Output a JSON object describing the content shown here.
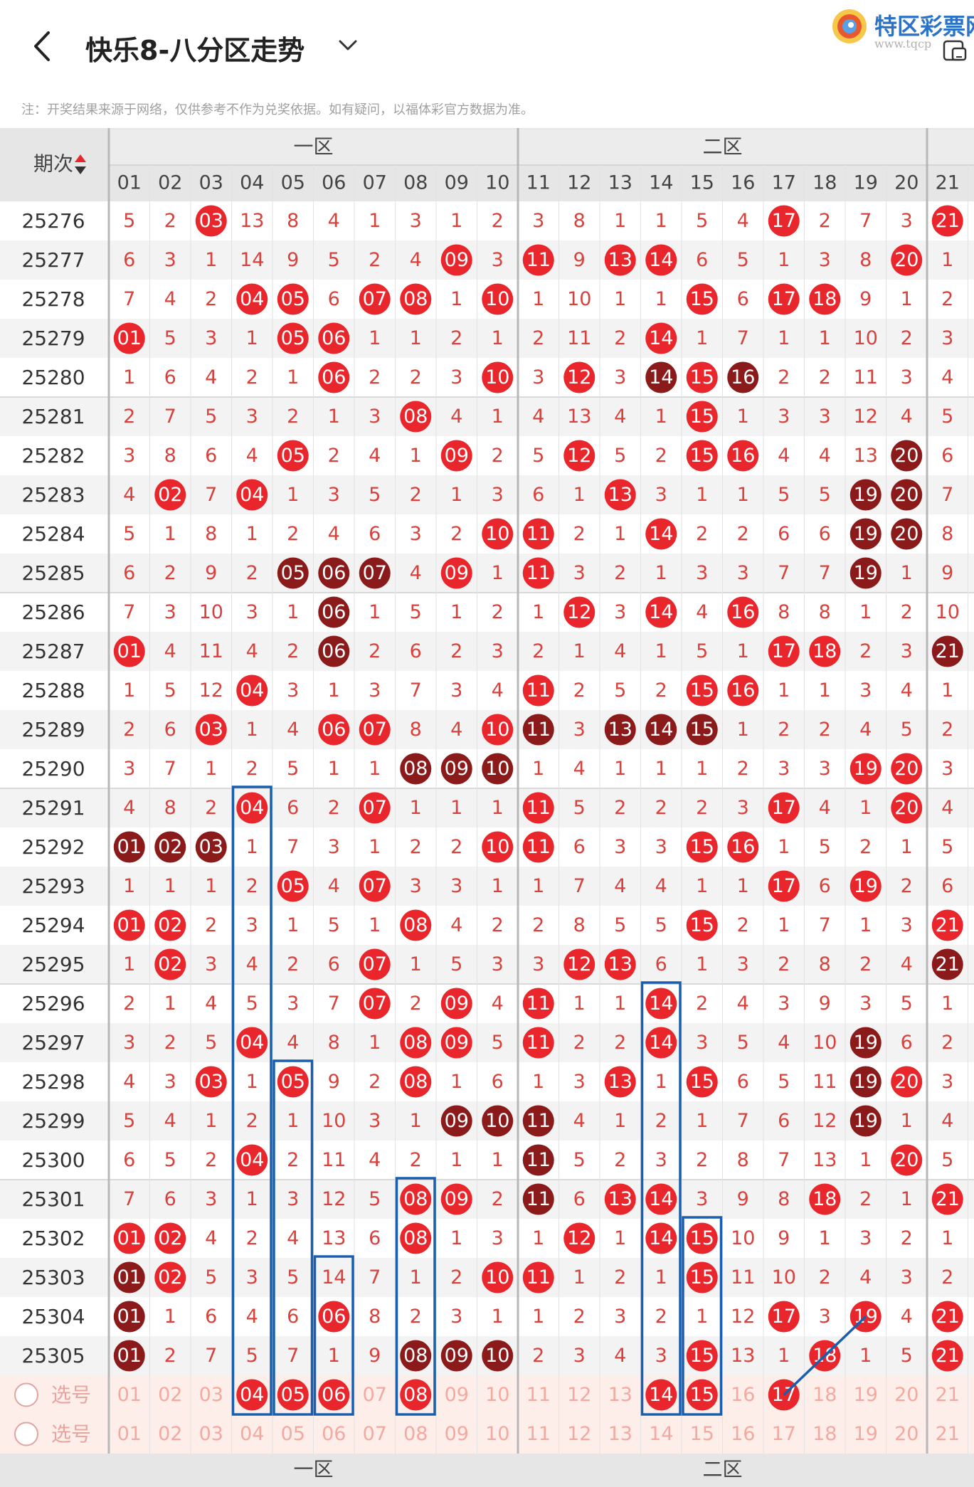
{
  "header": {
    "back_icon": "chevron-left-icon",
    "title": "快乐8-八分区走势",
    "dropdown_icon": "chevron-down-icon",
    "brand_name": "特区彩票网",
    "brand_url": "www.tqcp",
    "device_icon": "phone-icon"
  },
  "note": "注：开奖结果来源于网络，仅供参考不作为兑奖依据。如有疑问，以福体彩官方数据为准。",
  "table": {
    "period_header": "期次",
    "zone_labels": [
      "一区",
      "二区"
    ],
    "columns": [
      "01",
      "02",
      "03",
      "04",
      "05",
      "06",
      "07",
      "08",
      "09",
      "10",
      "11",
      "12",
      "13",
      "14",
      "15",
      "16",
      "17",
      "18",
      "19",
      "20",
      "21"
    ],
    "rows": [
      {
        "period": "25276",
        "cells": [
          "5",
          "2",
          "03",
          "13",
          "8",
          "4",
          "1",
          "3",
          "1",
          "2",
          "3",
          "8",
          "1",
          "1",
          "5",
          "4",
          "17",
          "2",
          "7",
          "3",
          "21"
        ]
      },
      {
        "period": "25277",
        "cells": [
          "6",
          "3",
          "1",
          "14",
          "9",
          "5",
          "2",
          "4",
          "09",
          "3",
          "11",
          "9",
          "13",
          "14",
          "6",
          "5",
          "1",
          "3",
          "8",
          "20",
          "1"
        ]
      },
      {
        "period": "25278",
        "cells": [
          "7",
          "4",
          "2",
          "04",
          "05",
          "6",
          "07",
          "08",
          "1",
          "10",
          "1",
          "10",
          "1",
          "1",
          "15",
          "6",
          "17",
          "18",
          "9",
          "1",
          "2"
        ]
      },
      {
        "period": "25279",
        "cells": [
          "01",
          "5",
          "3",
          "1",
          "05",
          "06",
          "1",
          "1",
          "2",
          "1",
          "2",
          "11",
          "2",
          "14",
          "1",
          "7",
          "1",
          "1",
          "10",
          "2",
          "3"
        ]
      },
      {
        "period": "25280",
        "cells": [
          "1",
          "6",
          "4",
          "2",
          "1",
          "06",
          "2",
          "2",
          "3",
          "10",
          "3",
          "12",
          "3",
          "14",
          "15",
          "16",
          "2",
          "2",
          "11",
          "3",
          "4"
        ]
      },
      {
        "period": "25281",
        "cells": [
          "2",
          "7",
          "5",
          "3",
          "2",
          "1",
          "3",
          "08",
          "4",
          "1",
          "4",
          "13",
          "4",
          "1",
          "15",
          "1",
          "3",
          "3",
          "12",
          "4",
          "5"
        ]
      },
      {
        "period": "25282",
        "cells": [
          "3",
          "8",
          "6",
          "4",
          "05",
          "2",
          "4",
          "1",
          "09",
          "2",
          "5",
          "12",
          "5",
          "2",
          "15",
          "16",
          "4",
          "4",
          "13",
          "20",
          "6"
        ]
      },
      {
        "period": "25283",
        "cells": [
          "4",
          "02",
          "7",
          "04",
          "1",
          "3",
          "5",
          "2",
          "1",
          "3",
          "6",
          "1",
          "13",
          "3",
          "1",
          "1",
          "5",
          "5",
          "19",
          "20",
          "7"
        ]
      },
      {
        "period": "25284",
        "cells": [
          "5",
          "1",
          "8",
          "1",
          "2",
          "4",
          "6",
          "3",
          "2",
          "10",
          "11",
          "2",
          "1",
          "14",
          "2",
          "2",
          "6",
          "6",
          "19",
          "20",
          "8"
        ]
      },
      {
        "period": "25285",
        "cells": [
          "6",
          "2",
          "9",
          "2",
          "05",
          "06",
          "07",
          "4",
          "09",
          "1",
          "11",
          "3",
          "2",
          "1",
          "3",
          "3",
          "7",
          "7",
          "19",
          "1",
          "9"
        ]
      },
      {
        "period": "25286",
        "cells": [
          "7",
          "3",
          "10",
          "3",
          "1",
          "06",
          "1",
          "5",
          "1",
          "2",
          "1",
          "12",
          "3",
          "14",
          "4",
          "16",
          "8",
          "8",
          "1",
          "2",
          "10"
        ]
      },
      {
        "period": "25287",
        "cells": [
          "01",
          "4",
          "11",
          "4",
          "2",
          "06",
          "2",
          "6",
          "2",
          "3",
          "2",
          "1",
          "4",
          "1",
          "5",
          "1",
          "17",
          "18",
          "2",
          "3",
          "21"
        ]
      },
      {
        "period": "25288",
        "cells": [
          "1",
          "5",
          "12",
          "04",
          "3",
          "1",
          "3",
          "7",
          "3",
          "4",
          "11",
          "2",
          "5",
          "2",
          "15",
          "16",
          "1",
          "1",
          "3",
          "4",
          "1"
        ]
      },
      {
        "period": "25289",
        "cells": [
          "2",
          "6",
          "03",
          "1",
          "4",
          "06",
          "07",
          "8",
          "4",
          "10",
          "11",
          "3",
          "13",
          "14",
          "15",
          "1",
          "2",
          "2",
          "4",
          "5",
          "2"
        ]
      },
      {
        "period": "25290",
        "cells": [
          "3",
          "7",
          "1",
          "2",
          "5",
          "1",
          "1",
          "08",
          "09",
          "10",
          "1",
          "4",
          "1",
          "1",
          "1",
          "2",
          "3",
          "3",
          "19",
          "20",
          "3"
        ]
      },
      {
        "period": "25291",
        "cells": [
          "4",
          "8",
          "2",
          "04",
          "6",
          "2",
          "07",
          "1",
          "1",
          "1",
          "11",
          "5",
          "2",
          "2",
          "2",
          "3",
          "17",
          "4",
          "1",
          "20",
          "4"
        ]
      },
      {
        "period": "25292",
        "cells": [
          "01",
          "02",
          "03",
          "1",
          "7",
          "3",
          "1",
          "2",
          "2",
          "10",
          "11",
          "6",
          "3",
          "3",
          "15",
          "16",
          "1",
          "5",
          "2",
          "1",
          "5"
        ]
      },
      {
        "period": "25293",
        "cells": [
          "1",
          "1",
          "1",
          "2",
          "05",
          "4",
          "07",
          "3",
          "3",
          "1",
          "1",
          "7",
          "4",
          "4",
          "1",
          "1",
          "17",
          "6",
          "19",
          "2",
          "6"
        ]
      },
      {
        "period": "25294",
        "cells": [
          "01",
          "02",
          "2",
          "3",
          "1",
          "5",
          "1",
          "08",
          "4",
          "2",
          "2",
          "8",
          "5",
          "5",
          "15",
          "2",
          "1",
          "7",
          "1",
          "3",
          "21"
        ]
      },
      {
        "period": "25295",
        "cells": [
          "1",
          "02",
          "3",
          "4",
          "2",
          "6",
          "07",
          "1",
          "5",
          "3",
          "3",
          "12",
          "13",
          "6",
          "1",
          "3",
          "2",
          "8",
          "2",
          "4",
          "21"
        ]
      },
      {
        "period": "25296",
        "cells": [
          "2",
          "1",
          "4",
          "5",
          "3",
          "7",
          "07",
          "2",
          "09",
          "4",
          "11",
          "1",
          "1",
          "14",
          "2",
          "4",
          "3",
          "9",
          "3",
          "5",
          "1"
        ]
      },
      {
        "period": "25297",
        "cells": [
          "3",
          "2",
          "5",
          "04",
          "4",
          "8",
          "1",
          "08",
          "09",
          "5",
          "11",
          "2",
          "2",
          "14",
          "3",
          "5",
          "4",
          "10",
          "19",
          "6",
          "2"
        ]
      },
      {
        "period": "25298",
        "cells": [
          "4",
          "3",
          "03",
          "1",
          "05",
          "9",
          "2",
          "08",
          "1",
          "6",
          "1",
          "3",
          "13",
          "1",
          "15",
          "6",
          "5",
          "11",
          "19",
          "20",
          "3"
        ]
      },
      {
        "period": "25299",
        "cells": [
          "5",
          "4",
          "1",
          "2",
          "1",
          "10",
          "3",
          "1",
          "09",
          "10",
          "11",
          "4",
          "1",
          "2",
          "1",
          "7",
          "6",
          "12",
          "19",
          "1",
          "4"
        ]
      },
      {
        "period": "25300",
        "cells": [
          "6",
          "5",
          "2",
          "04",
          "2",
          "11",
          "4",
          "2",
          "1",
          "1",
          "11",
          "5",
          "2",
          "3",
          "2",
          "8",
          "7",
          "13",
          "1",
          "20",
          "5"
        ]
      },
      {
        "period": "25301",
        "cells": [
          "7",
          "6",
          "3",
          "1",
          "3",
          "12",
          "5",
          "08",
          "09",
          "2",
          "11",
          "6",
          "13",
          "14",
          "3",
          "9",
          "8",
          "18",
          "2",
          "1",
          "21"
        ]
      },
      {
        "period": "25302",
        "cells": [
          "01",
          "02",
          "4",
          "2",
          "4",
          "13",
          "6",
          "08",
          "1",
          "3",
          "1",
          "12",
          "1",
          "14",
          "15",
          "10",
          "9",
          "1",
          "3",
          "2",
          "1"
        ]
      },
      {
        "period": "25303",
        "cells": [
          "01",
          "02",
          "5",
          "3",
          "5",
          "14",
          "7",
          "1",
          "2",
          "10",
          "11",
          "1",
          "2",
          "1",
          "15",
          "11",
          "10",
          "2",
          "4",
          "3",
          "2"
        ]
      },
      {
        "period": "25304",
        "cells": [
          "01",
          "1",
          "6",
          "4",
          "6",
          "06",
          "8",
          "2",
          "3",
          "1",
          "1",
          "2",
          "3",
          "2",
          "1",
          "12",
          "17",
          "3",
          "19",
          "4",
          "21"
        ]
      },
      {
        "period": "25305",
        "cells": [
          "01",
          "2",
          "7",
          "5",
          "7",
          "1",
          "9",
          "08",
          "09",
          "10",
          "2",
          "3",
          "4",
          "3",
          "15",
          "13",
          "1",
          "18",
          "1",
          "5",
          "21"
        ]
      }
    ],
    "dark_cells": {
      "25280": [
        "14",
        "16"
      ],
      "25282": [
        "20"
      ],
      "25283": [
        "19",
        "20"
      ],
      "25284": [
        "19",
        "20"
      ],
      "25285": [
        "05",
        "06",
        "07",
        "19"
      ],
      "25286": [
        "06"
      ],
      "25287": [
        "06",
        "21"
      ],
      "25289": [
        "11",
        "13",
        "14",
        "15"
      ],
      "25290": [
        "08",
        "09",
        "10"
      ],
      "25292": [
        "01",
        "02",
        "03"
      ],
      "25295": [
        "21"
      ],
      "25297": [
        "19"
      ],
      "25298": [
        "19"
      ],
      "25299": [
        "09",
        "10",
        "11",
        "19"
      ],
      "25300": [
        "11"
      ],
      "25301": [
        "11"
      ],
      "25303": [
        "01"
      ],
      "25304": [
        "01"
      ],
      "25305": [
        "01",
        "08",
        "09",
        "10"
      ]
    },
    "select_rows": [
      {
        "label": "选号",
        "radio_icon": "radio-circle-icon",
        "selected": [
          "04",
          "05",
          "06",
          "08",
          "14",
          "15",
          "17"
        ]
      },
      {
        "label": "选号",
        "radio_icon": "radio-circle-icon",
        "selected": []
      }
    ],
    "colors": {
      "ball_red": "#e8262b",
      "ball_dark": "#8b1a1a",
      "miss_text": "#d8413c",
      "period_text": "#333333",
      "header_bg": "#e6e6e6",
      "row_alt_bg": "#f3f3f3",
      "select_row_bg": "#fdeeea",
      "select_num_text": "#f4a9a0",
      "box_outline": "#1a5fae"
    }
  }
}
